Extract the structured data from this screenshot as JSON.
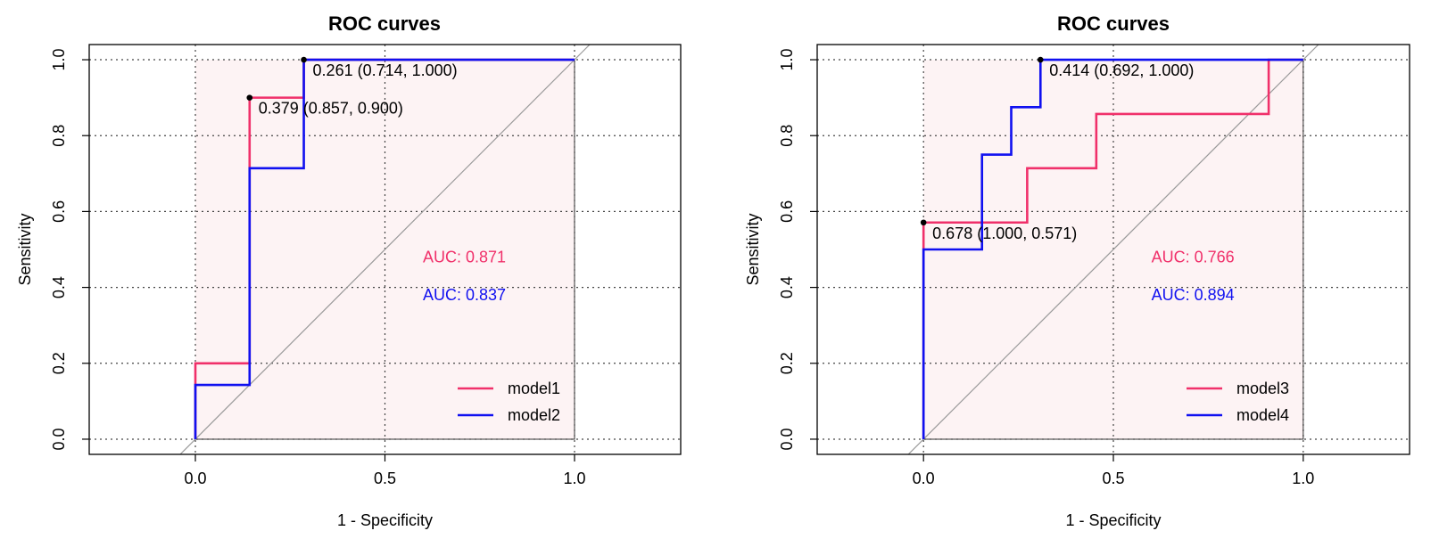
{
  "chart_data": [
    {
      "type": "line",
      "title": "ROC curves",
      "xlabel": "1 - Specificity",
      "ylabel": "Sensitivity",
      "xlim": [
        -0.28,
        1.28
      ],
      "ylim": [
        -0.04,
        1.04
      ],
      "xticks": [
        "0.0",
        "0.5",
        "1.0"
      ],
      "xtick_values": [
        0,
        0.5,
        1
      ],
      "yticks": [
        "0.0",
        "0.2",
        "0.4",
        "0.6",
        "0.8",
        "1.0"
      ],
      "ytick_values": [
        0,
        0.2,
        0.4,
        0.6,
        0.8,
        1.0
      ],
      "grid": true,
      "legend_position": "bottom-right",
      "series": [
        {
          "name": "model1",
          "color": "#F0306A",
          "x": [
            0,
            0,
            0.143,
            0.143,
            0.286,
            0.286,
            1
          ],
          "y": [
            0,
            0.2,
            0.2,
            0.9,
            0.9,
            1,
            1
          ],
          "auc_label": "AUC: 0.871"
        },
        {
          "name": "model2",
          "color": "#1010F0",
          "x": [
            0,
            0,
            0.143,
            0.143,
            0.286,
            0.286,
            1
          ],
          "y": [
            0,
            0.143,
            0.143,
            0.714,
            0.714,
            1,
            1
          ],
          "auc_label": "AUC: 0.837"
        }
      ],
      "thresholds": [
        {
          "x": 0.143,
          "y": 0.9,
          "label": "0.379 (0.857, 0.900)"
        },
        {
          "x": 0.286,
          "y": 1.0,
          "label": "0.261 (0.714, 1.000)"
        }
      ]
    },
    {
      "type": "line",
      "title": "ROC curves",
      "xlabel": "1 - Specificity",
      "ylabel": "Sensitivity",
      "xlim": [
        -0.28,
        1.28
      ],
      "ylim": [
        -0.04,
        1.04
      ],
      "xticks": [
        "0.0",
        "0.5",
        "1.0"
      ],
      "xtick_values": [
        0,
        0.5,
        1
      ],
      "yticks": [
        "0.0",
        "0.2",
        "0.4",
        "0.6",
        "0.8",
        "1.0"
      ],
      "ytick_values": [
        0,
        0.2,
        0.4,
        0.6,
        0.8,
        1.0
      ],
      "grid": true,
      "legend_position": "bottom-right",
      "series": [
        {
          "name": "model3",
          "color": "#F0306A",
          "x": [
            0,
            0,
            0.273,
            0.273,
            0.455,
            0.455,
            0.909,
            0.909,
            1
          ],
          "y": [
            0,
            0.571,
            0.571,
            0.714,
            0.714,
            0.857,
            0.857,
            1,
            1
          ],
          "auc_label": "AUC: 0.766"
        },
        {
          "name": "model4",
          "color": "#1010F0",
          "x": [
            0,
            0,
            0.154,
            0.154,
            0.231,
            0.231,
            0.308,
            0.308,
            1
          ],
          "y": [
            0,
            0.5,
            0.5,
            0.75,
            0.75,
            0.875,
            0.875,
            1,
            1
          ],
          "auc_label": "AUC: 0.894"
        }
      ],
      "thresholds": [
        {
          "x": 0.0,
          "y": 0.571,
          "label": "0.678 (1.000, 0.571)"
        },
        {
          "x": 0.308,
          "y": 1.0,
          "label": "0.414 (0.692, 1.000)"
        }
      ]
    }
  ]
}
